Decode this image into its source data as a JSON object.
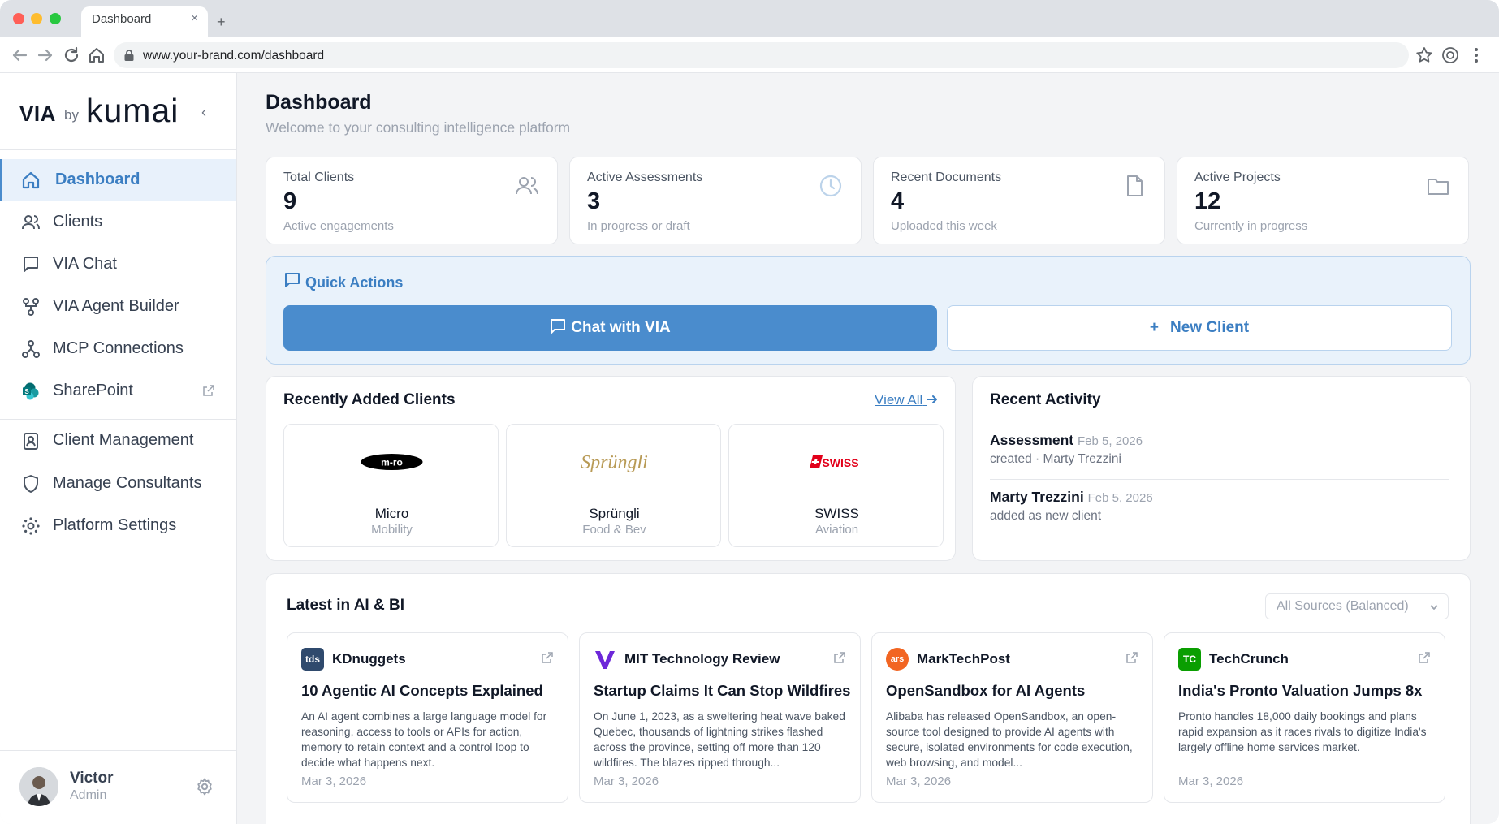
{
  "browser": {
    "tab_title": "Dashboard",
    "tab_close": "×",
    "new_tab": "+",
    "url": "www.your-brand.com/dashboard"
  },
  "sidebar": {
    "logo": {
      "via": "VIA",
      "by": "by",
      "brand": "kumai"
    },
    "collapse": "‹",
    "items": [
      {
        "label": "Dashboard",
        "icon": "home-icon",
        "active": true
      },
      {
        "label": "Clients",
        "icon": "users-icon"
      },
      {
        "label": "VIA Chat",
        "icon": "chat-icon"
      },
      {
        "label": "VIA Agent Builder",
        "icon": "agent-builder-icon"
      },
      {
        "label": "MCP Connections",
        "icon": "connections-icon"
      },
      {
        "label": "SharePoint",
        "icon": "sharepoint-icon",
        "external": true
      },
      {
        "label": "Client Management",
        "icon": "client-management-icon"
      },
      {
        "label": "Manage Consultants",
        "icon": "shield-icon"
      },
      {
        "label": "Platform Settings",
        "icon": "settings-icon"
      }
    ],
    "user": {
      "name": "Victor",
      "role": "Admin"
    }
  },
  "header": {
    "title": "Dashboard",
    "subtitle": "Welcome to your consulting intelligence platform"
  },
  "stats": [
    {
      "label": "Total Clients",
      "value": "9",
      "note": "Active engagements",
      "icon": "users-icon"
    },
    {
      "label": "Active Assessments",
      "value": "3",
      "note": "In progress or draft",
      "icon": "clock-icon"
    },
    {
      "label": "Recent Documents",
      "value": "4",
      "note": "Uploaded this week",
      "icon": "document-icon"
    },
    {
      "label": "Active Projects",
      "value": "12",
      "note": "Currently in progress",
      "icon": "folder-icon"
    }
  ],
  "quick_actions": {
    "title": "Quick Actions",
    "chat_button": "Chat with VIA",
    "new_client_button": "New Client",
    "plus": "+"
  },
  "recent_clients": {
    "title": "Recently Added Clients",
    "view_all": "View All",
    "clients": [
      {
        "name": "Micro",
        "sector": "Mobility",
        "logo_text": "m-ro"
      },
      {
        "name": "Sprüngli",
        "sector": "Food & Bev",
        "logo_text": "Sprüngli"
      },
      {
        "name": "SWISS",
        "sector": "Aviation",
        "logo_text": "SWISS"
      }
    ]
  },
  "recent_activity": {
    "title": "Recent Activity",
    "items": [
      {
        "head": "Assessment",
        "date": "Feb 5, 2026",
        "sub": "created · Marty Trezzini"
      },
      {
        "head": "Marty Trezzini",
        "date": "Feb 5, 2026",
        "sub": "added as new client"
      }
    ]
  },
  "news": {
    "title": "Latest in AI & BI",
    "source_filter": "All Sources (Balanced)",
    "items": [
      {
        "source": "KDnuggets",
        "badge": "tds",
        "badge_color": "#2f4a6d",
        "title": "10 Agentic AI Concepts Explained",
        "body": "An AI agent combines a large language model for reasoning, access to tools or APIs for action, memory to retain context and a control loop to decide what happens next.",
        "date": "Mar 3, 2026"
      },
      {
        "source": "MIT Technology Review",
        "badge": "V",
        "badge_color": "#6d28d9",
        "title": "Startup Claims It Can Stop Wildfires",
        "body": "On June 1, 2023, as a sweltering heat wave baked Quebec, thousands of lightning strikes flashed across the province, setting off more than 120 wildfires. The blazes ripped through...",
        "date": "Mar 3, 2026"
      },
      {
        "source": "MarkTechPost",
        "badge": "ars",
        "badge_color": "#f26522",
        "title": "OpenSandbox for AI Agents",
        "body": "Alibaba has released OpenSandbox, an open-source tool designed to provide AI agents with secure, isolated environments for code execution, web browsing, and model...",
        "date": "Mar 3, 2026"
      },
      {
        "source": "TechCrunch",
        "badge": "TC",
        "badge_color": "#0a9e01",
        "title": "India's Pronto Valuation Jumps 8x",
        "body": "Pronto handles 18,000 daily bookings and plans rapid expansion as it races rivals to digitize India's largely offline home services market.",
        "date": "Mar 3, 2026"
      }
    ]
  },
  "colors": {
    "accent": "#4a8ccd",
    "accent_text": "#3b7ec2",
    "accent_bg": "#e9f2fb"
  }
}
